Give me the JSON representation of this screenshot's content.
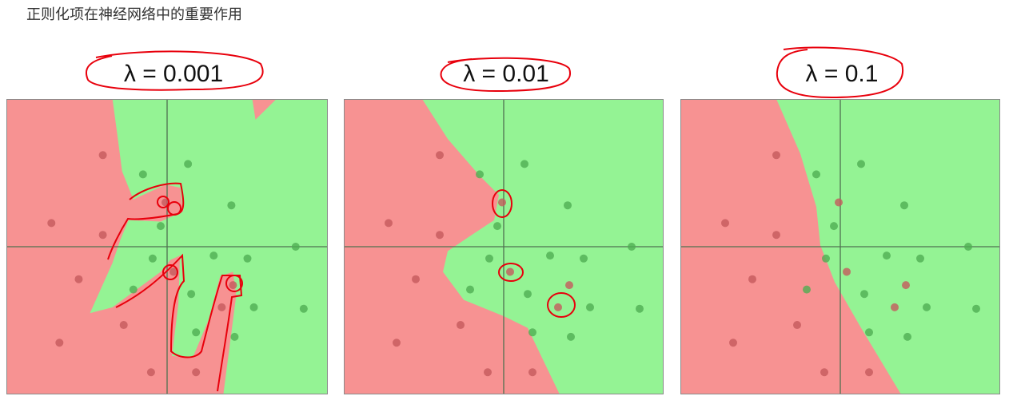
{
  "slide": {
    "title": "正则化项在神经网络中的重要作用"
  },
  "colors": {
    "red_region": "#f79292",
    "green_region": "#94f394",
    "red_point": "#c45a5c",
    "green_point": "#4fae52",
    "axis": "#4f7150",
    "annotation": "#e8000c"
  },
  "chart_data": [
    {
      "type": "scatter",
      "title": "λ = 0.001",
      "xlim": [
        -1,
        1
      ],
      "ylim": [
        -1,
        1
      ],
      "grid": false,
      "red_region": [
        [
          [
            -1,
            1
          ],
          [
            -0.34,
            1
          ],
          [
            -0.31,
            0.76
          ],
          [
            -0.28,
            0.51
          ],
          [
            -0.21,
            0.32
          ],
          [
            -0.01,
            0.42
          ],
          [
            0.08,
            0.4
          ],
          [
            0.1,
            0.24
          ],
          [
            -0.04,
            0.17
          ],
          [
            -0.24,
            0.18
          ],
          [
            -0.29,
            0.05
          ],
          [
            -0.34,
            -0.11
          ],
          [
            -0.48,
            -0.45
          ],
          [
            -0.34,
            -0.41
          ],
          [
            -0.04,
            -0.17
          ],
          [
            0.02,
            -0.09
          ],
          [
            0.08,
            -0.06
          ],
          [
            0.07,
            -0.39
          ],
          [
            0.03,
            -0.74
          ],
          [
            0.16,
            -0.75
          ],
          [
            0.26,
            -0.49
          ],
          [
            0.33,
            -0.2
          ],
          [
            0.41,
            -0.17
          ],
          [
            0.43,
            -0.33
          ],
          [
            0.35,
            -1
          ],
          [
            -1,
            -1
          ]
        ],
        [
          [
            0.53,
            1
          ],
          [
            0.68,
            1
          ],
          [
            0.55,
            0.86
          ]
        ]
      ]
    },
    {
      "type": "scatter",
      "title": "λ = 0.01",
      "xlim": [
        -1,
        1
      ],
      "ylim": [
        -1,
        1
      ],
      "grid": false,
      "red_region": [
        [
          [
            -1,
            1
          ],
          [
            -0.51,
            1
          ],
          [
            -0.35,
            0.73
          ],
          [
            -0.15,
            0.48
          ],
          [
            -0.03,
            0.35
          ],
          [
            -0.06,
            0.18
          ],
          [
            -0.2,
            0.08
          ],
          [
            -0.35,
            -0.03
          ],
          [
            -0.38,
            -0.17
          ],
          [
            -0.25,
            -0.36
          ],
          [
            0,
            -0.47
          ],
          [
            0.15,
            -0.55
          ],
          [
            0.35,
            -1
          ],
          [
            -1,
            -1
          ]
        ]
      ]
    },
    {
      "type": "scatter",
      "title": "λ = 0.1",
      "xlim": [
        -1,
        1
      ],
      "ylim": [
        -1,
        1
      ],
      "grid": false,
      "red_region": [
        [
          [
            -1,
            1
          ],
          [
            -0.4,
            1
          ],
          [
            -0.25,
            0.63
          ],
          [
            -0.15,
            0.27
          ],
          [
            -0.125,
            0.01
          ],
          [
            -0.035,
            -0.24
          ],
          [
            0.13,
            -0.55
          ],
          [
            0.38,
            -1
          ],
          [
            -1,
            -1
          ]
        ]
      ]
    }
  ],
  "points": {
    "red": [
      [
        -0.4,
        0.62
      ],
      [
        -0.72,
        0.16
      ],
      [
        -0.4,
        0.08
      ],
      [
        -0.55,
        -0.22
      ],
      [
        -0.27,
        -0.53
      ],
      [
        -0.67,
        -0.65
      ],
      [
        -0.1,
        -0.85
      ],
      [
        0.18,
        -0.85
      ],
      [
        -0.01,
        0.3
      ],
      [
        0.04,
        -0.17
      ],
      [
        0.34,
        -0.41
      ],
      [
        0.41,
        -0.26
      ]
    ],
    "green": [
      [
        -0.15,
        0.49
      ],
      [
        0.13,
        0.56
      ],
      [
        0.4,
        0.28
      ],
      [
        -0.04,
        0.14
      ],
      [
        -0.09,
        -0.08
      ],
      [
        0.29,
        -0.06
      ],
      [
        0.5,
        -0.08
      ],
      [
        0.8,
        0.0
      ],
      [
        -0.21,
        -0.29
      ],
      [
        0.15,
        -0.32
      ],
      [
        0.18,
        -0.58
      ],
      [
        0.54,
        -0.41
      ],
      [
        0.85,
        -0.42
      ],
      [
        0.42,
        -0.61
      ]
    ]
  }
}
